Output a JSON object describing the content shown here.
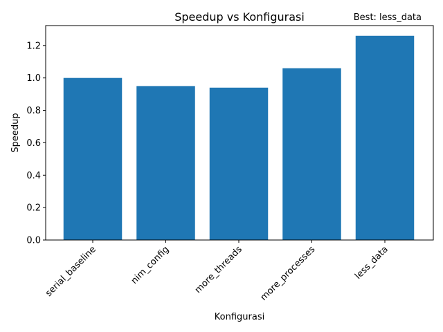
{
  "chart_data": {
    "type": "bar",
    "title": "Speedup vs Konfigurasi",
    "annotation": "Best: less_data",
    "xlabel": "Konfigurasi",
    "ylabel": "Speedup",
    "categories": [
      "serial_baseline",
      "nim_config",
      "more_threads",
      "more_processes",
      "less_data"
    ],
    "values": [
      1.0,
      0.95,
      0.94,
      1.06,
      1.26
    ],
    "ylim": [
      0,
      1.323
    ],
    "yticks": [
      0.0,
      0.2,
      0.4,
      0.6,
      0.8,
      1.0,
      1.2
    ],
    "ytick_labels": [
      "0.0",
      "0.2",
      "0.4",
      "0.6",
      "0.8",
      "1.0",
      "1.2"
    ],
    "bar_color": "#1f77b4",
    "grid": false,
    "legend": false,
    "xtick_rotation_deg": 45
  }
}
